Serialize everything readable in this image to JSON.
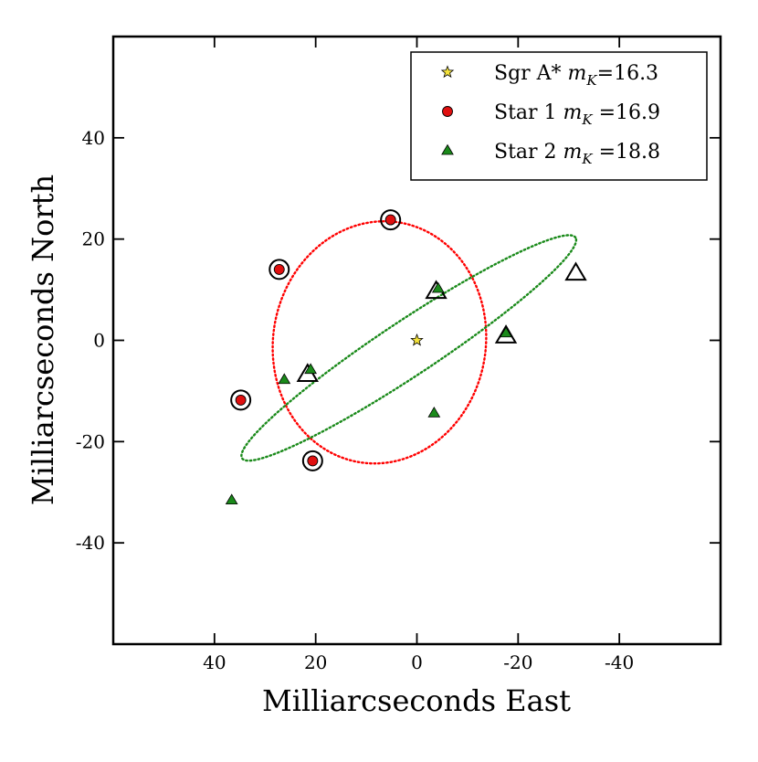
{
  "chart_data": {
    "type": "scatter",
    "title": "",
    "xlabel": "Milliarcseconds East",
    "ylabel": "Milliarcseconds North",
    "xlim": [
      60,
      -60
    ],
    "ylim": [
      -60,
      60
    ],
    "x_ticks": [
      40,
      20,
      0,
      -20,
      -40
    ],
    "y_ticks": [
      40,
      20,
      0,
      -20,
      -40
    ],
    "x_tick_labels": [
      "40",
      "20",
      "0",
      "-20",
      "-40"
    ],
    "y_tick_labels": [
      "40",
      "20",
      "0",
      "-20",
      "-40"
    ],
    "grid": false,
    "legend_position": "top-right",
    "legend": [
      {
        "name": "Sgr A*",
        "mag_symbol": "m",
        "mag_subscript": "K",
        "mag_value": "=16.3",
        "color": "#f5e33b",
        "marker": "star"
      },
      {
        "name": "Star 1",
        "mag_symbol": "m",
        "mag_subscript": "K",
        "mag_value": " =16.9",
        "color": "#e01010",
        "marker": "circle"
      },
      {
        "name": "Star 2",
        "mag_symbol": "m",
        "mag_subscript": "K",
        "mag_value": " =18.8",
        "color": "#1a8a1a",
        "marker": "triangle"
      }
    ],
    "series": [
      {
        "name": "Sgr A*",
        "marker": "star",
        "color": "#f5e33b",
        "points": [
          [
            0,
            0
          ]
        ]
      },
      {
        "name": "Star 1",
        "marker": "circle",
        "color": "#e01010",
        "points": [
          [
            5.2,
            23.8
          ],
          [
            27.2,
            14.0
          ],
          [
            34.8,
            -11.8
          ],
          [
            20.6,
            -23.8
          ]
        ]
      },
      {
        "name": "Star 1 fit positions",
        "marker": "open-circle",
        "color": "#000000",
        "points": [
          [
            5.2,
            23.8
          ],
          [
            27.2,
            14.0
          ],
          [
            34.8,
            -11.8
          ],
          [
            20.6,
            -23.8
          ]
        ]
      },
      {
        "name": "Star 2",
        "marker": "triangle",
        "color": "#1a8a1a",
        "points": [
          [
            -4.2,
            10.2
          ],
          [
            -17.6,
            1.4
          ],
          [
            21.0,
            -5.8
          ],
          [
            26.2,
            -7.8
          ],
          [
            -3.4,
            -14.4
          ],
          [
            36.6,
            -31.6
          ]
        ]
      },
      {
        "name": "Star 2 fit positions",
        "marker": "open-triangle",
        "color": "#000000",
        "points": [
          [
            -3.8,
            9.6
          ],
          [
            -17.6,
            0.8
          ],
          [
            21.6,
            -6.8
          ],
          [
            -31.4,
            13.2
          ]
        ]
      }
    ],
    "orbits": [
      {
        "name": "Star 1 orbit",
        "color": "#ff0000",
        "style": "dotted",
        "center": [
          7.4,
          -0.4
        ],
        "semi_major": 24.0,
        "semi_minor": 21.0,
        "angle_deg": 80
      },
      {
        "name": "Star 2 orbit",
        "color": "#1a8a1a",
        "style": "dotted",
        "center": [
          1.6,
          -1.5
        ],
        "semi_major": 39.5,
        "semi_minor": 5.4,
        "angle_deg": 33.5
      }
    ]
  }
}
